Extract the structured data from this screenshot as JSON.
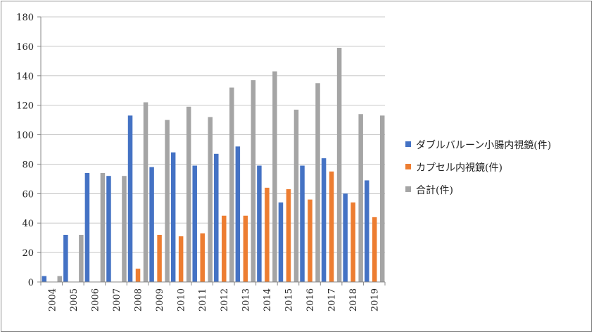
{
  "chart_data": {
    "type": "bar",
    "title": "",
    "xlabel": "",
    "ylabel": "",
    "ylim": [
      0,
      180
    ],
    "yticks": [
      0,
      20,
      40,
      60,
      80,
      100,
      120,
      140,
      160,
      180
    ],
    "grid": true,
    "legend_position": "right",
    "categories": [
      "2004",
      "2005",
      "2006",
      "2007",
      "2008",
      "2009",
      "2010",
      "2011",
      "2012",
      "2013",
      "2014",
      "2015",
      "2016",
      "2017",
      "2018",
      "2019"
    ],
    "series": [
      {
        "name": "ダブルバルーン小腸内視鏡(件)",
        "color": "#4472C4",
        "values": [
          4,
          32,
          74,
          72,
          113,
          78,
          88,
          79,
          87,
          92,
          79,
          54,
          79,
          84,
          60,
          69
        ]
      },
      {
        "name": "カプセル内視鏡(件)",
        "color": "#ED7D31",
        "values": [
          0,
          0,
          0,
          0,
          9,
          32,
          31,
          33,
          45,
          45,
          64,
          63,
          56,
          75,
          54,
          44
        ]
      },
      {
        "name": "合計(件)",
        "color": "#A5A5A5",
        "values": [
          4,
          32,
          74,
          72,
          122,
          110,
          119,
          112,
          132,
          137,
          143,
          117,
          135,
          159,
          114,
          113
        ]
      }
    ]
  }
}
